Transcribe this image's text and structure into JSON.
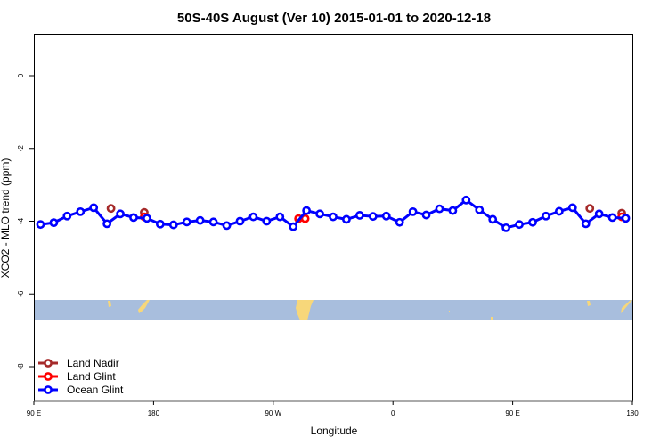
{
  "chart_data": {
    "type": "line",
    "title": "50S-40S August (Ver 10)   2015-01-01 to 2020-12-18",
    "xlabel": "Longitude",
    "ylabel": "XCO2 - MLO trend (ppm)",
    "xlim": [
      90,
      540
    ],
    "ylim": [
      -8.93,
      1.15
    ],
    "x_ticks": [
      {
        "value": 90,
        "label": "90 E"
      },
      {
        "value": 180,
        "label": "180"
      },
      {
        "value": 270,
        "label": "90 W"
      },
      {
        "value": 360,
        "label": "0"
      },
      {
        "value": 450,
        "label": "90 E"
      },
      {
        "value": 540,
        "label": "180"
      }
    ],
    "y_ticks": [
      {
        "value": 0,
        "label": "0"
      },
      {
        "value": -2,
        "label": "-2"
      },
      {
        "value": -4,
        "label": "-4"
      },
      {
        "value": -6,
        "label": "-6"
      },
      {
        "value": -8,
        "label": "-8"
      }
    ],
    "legend_position": "bottom-left",
    "series": [
      {
        "name": "Land Nadir",
        "color": "#a52a2a",
        "line": false,
        "x": [
          148,
          173,
          508,
          532
        ],
        "y": [
          -3.65,
          -3.76,
          -3.65,
          -3.78
        ]
      },
      {
        "name": "Land Glint",
        "color": "#ff0000",
        "line": false,
        "x": [
          173,
          289,
          294,
          532
        ],
        "y": [
          -3.88,
          -3.93,
          -3.93,
          -3.88
        ]
      },
      {
        "name": "Ocean Glint",
        "color": "#0000ff",
        "line": true,
        "x": [
          95,
          105,
          115,
          125,
          135,
          145,
          155,
          165,
          175,
          185,
          195,
          205,
          215,
          225,
          235,
          245,
          255,
          265,
          275,
          285,
          295,
          305,
          315,
          325,
          335,
          345,
          355,
          365,
          375,
          385,
          395,
          405,
          415,
          425,
          435,
          445,
          455,
          465,
          475,
          485,
          495,
          505,
          515,
          525,
          535
        ],
        "y": [
          -4.09,
          -4.04,
          -3.86,
          -3.74,
          -3.63,
          -4.07,
          -3.8,
          -3.9,
          -3.92,
          -4.08,
          -4.1,
          -4.02,
          -3.98,
          -4.02,
          -4.12,
          -4.0,
          -3.88,
          -4.0,
          -3.88,
          -4.15,
          -3.71,
          -3.8,
          -3.88,
          -3.95,
          -3.84,
          -3.87,
          -3.86,
          -4.03,
          -3.74,
          -3.83,
          -3.66,
          -3.71,
          -3.42,
          -3.69,
          -3.95,
          -4.18,
          -4.09,
          -4.03,
          -3.86,
          -3.73,
          -3.63,
          -4.07,
          -3.8,
          -3.9,
          -3.92
        ]
      }
    ],
    "map_strip": {
      "lat_range": [
        -50,
        -40
      ],
      "ocean_color": "#a8bedd",
      "land_color": "#f7d77a"
    }
  }
}
